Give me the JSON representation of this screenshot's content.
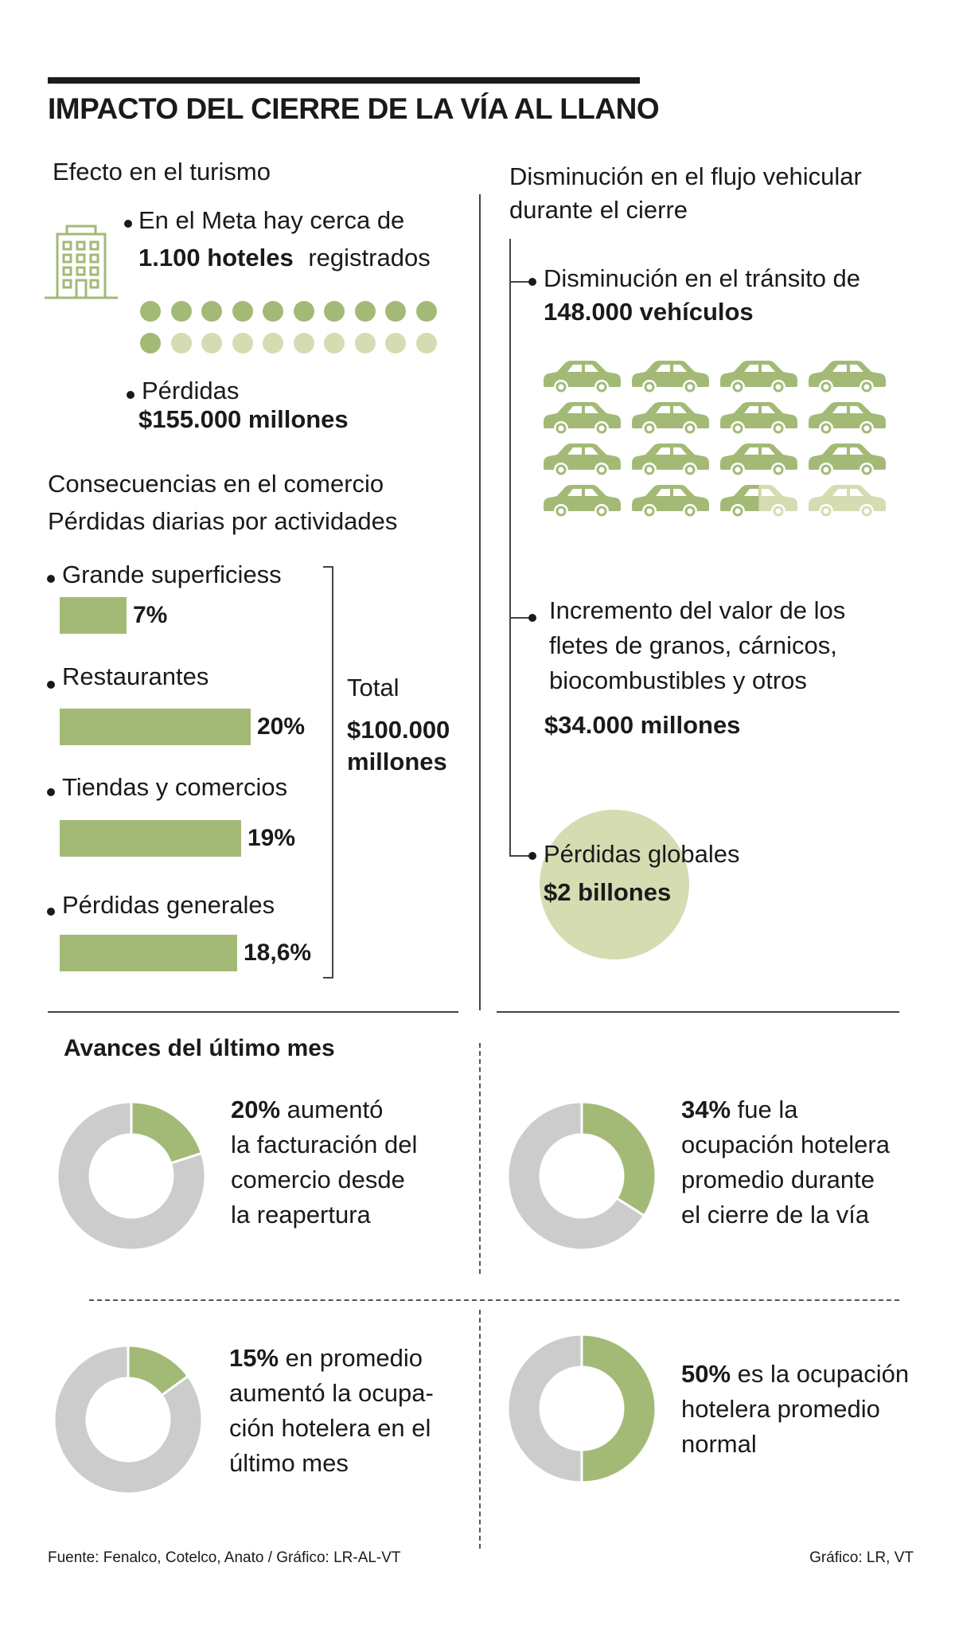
{
  "title": "IMPACTO DEL CIERRE DE LA VÍA AL LLANO",
  "colors": {
    "green": "#a3ba77",
    "light_green": "#d5dcb2",
    "gray": "#cccccc",
    "circle": "#d5dcb2"
  },
  "turismo": {
    "heading": "Efecto en el turismo",
    "hotels_line1": "En el Meta hay cerca de",
    "hotels_bold": "1.100 hoteles",
    "hotels_rest": "registrados",
    "icon": "hotel-building-icon",
    "dots_total": 20,
    "dots_filled": 11,
    "losses_label": "Pérdidas",
    "losses_value": "$155.000 millones"
  },
  "comercio": {
    "heading": "Consecuencias en el comercio",
    "subheading": "Pérdidas diarias por actividades",
    "total_label": "Total",
    "total_value_1": "$100.000",
    "total_value_2": "millones"
  },
  "chart_data": [
    {
      "type": "bar",
      "title": "Consecuencias en el comercio",
      "subtitle": "Pérdidas diarias por actividades",
      "categories": [
        "Grande superficiess",
        "Restaurantes",
        "Tiendas y comercios",
        "Pérdidas generales"
      ],
      "values": [
        7,
        20,
        19,
        18.6
      ],
      "labels": [
        "7%",
        "20%",
        "19%",
        "18,6%"
      ]
    },
    {
      "type": "pie",
      "value": 20,
      "label_bold": "20%",
      "lines": [
        "aumentó",
        "la facturación del",
        "comercio desde",
        "la reapertura"
      ]
    },
    {
      "type": "pie",
      "value": 34,
      "label_bold": "34%",
      "lines": [
        "fue la",
        "ocupación hotelera",
        "promedio durante",
        "el cierre de la vía"
      ]
    },
    {
      "type": "pie",
      "value": 15,
      "label_bold": "15%",
      "lines": [
        "en promedio",
        "aumentó la ocupa-",
        "ción hotelera en el",
        "último mes"
      ]
    },
    {
      "type": "pie",
      "value": 50,
      "label_bold": "50%",
      "lines": [
        "es la ocupación",
        "hotelera promedio",
        "normal"
      ]
    }
  ],
  "flujo": {
    "heading_1": "Disminución en el flujo vehicular",
    "heading_2": "durante el cierre",
    "transit_label": "Disminución en el tránsito de",
    "transit_value": "148.000 vehículos",
    "cars_total": 16,
    "cars_filled": 14.5,
    "car_icon": "car-icon",
    "freight_line1": "Incremento del valor de los",
    "freight_line2": "fletes de granos, cárnicos,",
    "freight_line3": "biocombustibles y otros",
    "freight_value": "$34.000 millones",
    "global_label": "Pérdidas globales",
    "global_value": "$2 billones"
  },
  "avances": {
    "heading": "Avances del último mes"
  },
  "footer": {
    "source": "Fuente: Fenalco, Cotelco, Anato / Gráfico: LR-AL-VT",
    "credit": "Gráfico: LR, VT"
  }
}
